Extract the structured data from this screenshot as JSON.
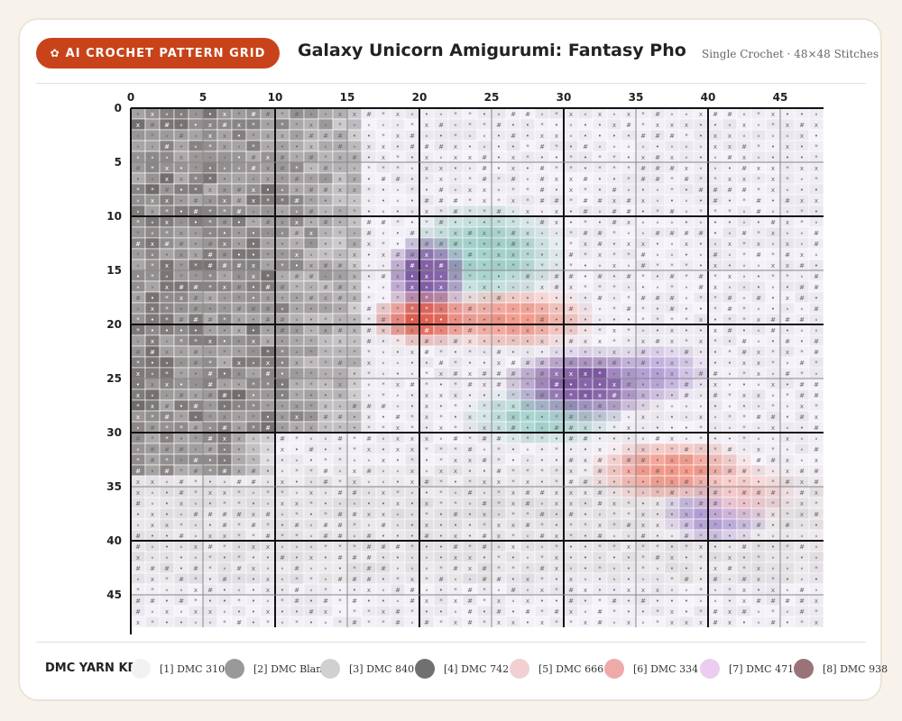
{
  "badge": {
    "icon": "yarn-icon",
    "label": "AI CROCHET PATTERN GRID"
  },
  "title": "Galaxy Unicorn Amigurumi: Fantasy Photo to",
  "subtitle": "Single Crochet · 48×48 Stitches",
  "grid": {
    "columns": 48,
    "rows": 48,
    "col_labels": [
      "0",
      "5",
      "10",
      "15",
      "20",
      "25",
      "30",
      "35",
      "40",
      "45"
    ],
    "row_labels": [
      "0",
      "5",
      "10",
      "15",
      "20",
      "25",
      "30",
      "35",
      "40",
      "45"
    ],
    "stitch_symbols": [
      "#",
      "x",
      "•",
      "∘",
      "*"
    ]
  },
  "legend": {
    "title": "DMC YARN KEY",
    "items": [
      {
        "label": "[1] DMC 310",
        "color": "#f2f2f2"
      },
      {
        "label": "[2] DMC Blanc",
        "color": "#999999"
      },
      {
        "label": "[3] DMC 840",
        "color": "#d0d0d0"
      },
      {
        "label": "[4] DMC 742",
        "color": "#707070"
      },
      {
        "label": "[5] DMC 666",
        "color": "#f0d0d0"
      },
      {
        "label": "[6] DMC 334",
        "color": "#eeaaa8"
      },
      {
        "label": "[7] DMC 471",
        "color": "#ecccef"
      },
      {
        "label": "[8] DMC 938",
        "color": "#9a7378"
      }
    ]
  }
}
